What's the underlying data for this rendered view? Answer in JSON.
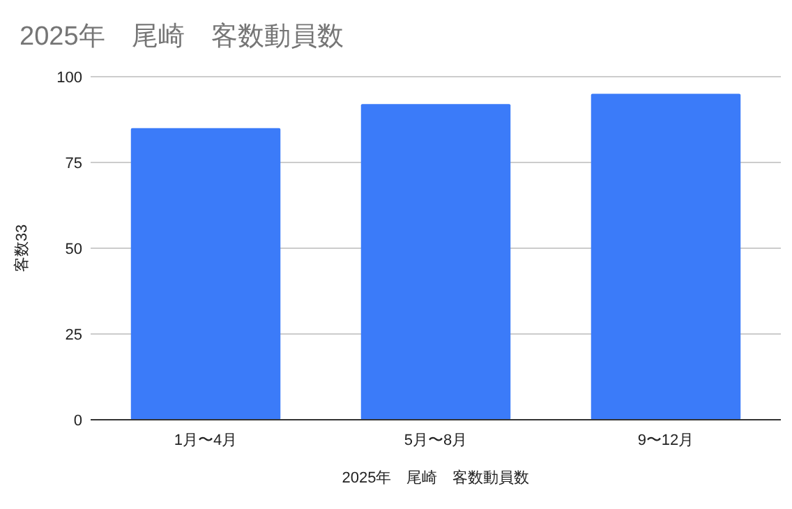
{
  "chart_data": {
    "type": "bar",
    "title": "2025年　尾崎　客数動員数",
    "xlabel": "2025年　尾崎　客数動員数",
    "ylabel": "客数33",
    "categories": [
      "1月〜4月",
      "5月〜8月",
      "9〜12月"
    ],
    "values": [
      85,
      92,
      95
    ],
    "color": "#3b7bf9",
    "ylim": [
      0,
      100
    ],
    "yticks": [
      0,
      25,
      50,
      75,
      100
    ],
    "grid": "y"
  }
}
